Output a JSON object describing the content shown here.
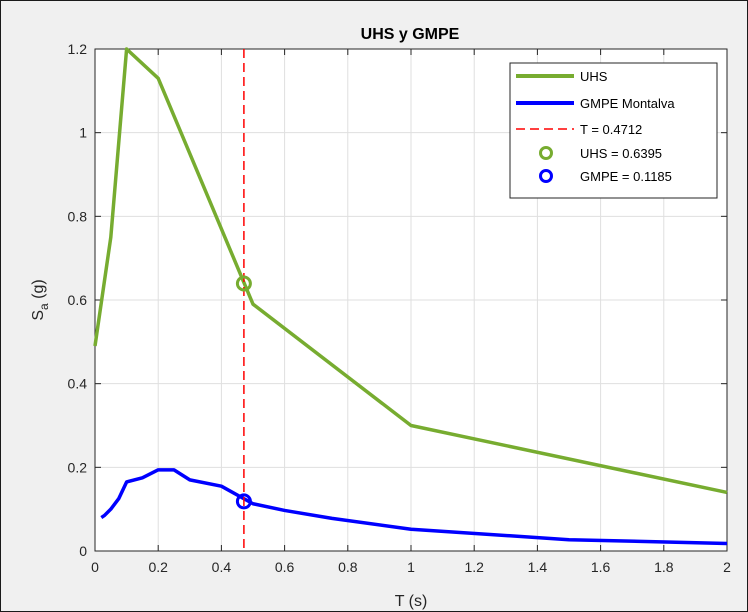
{
  "chart_data": {
    "type": "line",
    "title": "UHS y GMPE",
    "xlabel": "T (s)",
    "ylabel": {
      "main": "S",
      "sub": "a",
      "unit": " (g)"
    },
    "xlim": [
      0,
      2
    ],
    "ylim": [
      0,
      1.2
    ],
    "xticks": [
      0,
      0.2,
      0.4,
      0.6,
      0.8,
      1,
      1.2,
      1.4,
      1.6,
      1.8,
      2
    ],
    "xtick_labels": [
      "0",
      "0.2",
      "0.4",
      "0.6",
      "0.8",
      "1",
      "1.2",
      "1.4",
      "1.6",
      "1.8",
      "2"
    ],
    "yticks": [
      0,
      0.2,
      0.4,
      0.6,
      0.8,
      1,
      1.2
    ],
    "ytick_labels": [
      "0",
      "0.2",
      "0.4",
      "0.6",
      "0.8",
      "1",
      "1.2"
    ],
    "grid": true,
    "legend_position": "top-right",
    "series": [
      {
        "name": "UHS",
        "color": "#77ac30",
        "x": [
          0,
          0.05,
          0.1,
          0.2,
          0.5,
          1,
          2
        ],
        "y": [
          0.49,
          0.75,
          1.2,
          1.13,
          0.59,
          0.3,
          0.14
        ]
      },
      {
        "name": "GMPE Montalva",
        "color": "#0000ff",
        "x": [
          0.02,
          0.03,
          0.05,
          0.075,
          0.1,
          0.15,
          0.2,
          0.25,
          0.3,
          0.4,
          0.5,
          0.6,
          0.75,
          1,
          1.5,
          2
        ],
        "y": [
          0.08,
          0.085,
          0.1,
          0.125,
          0.165,
          0.175,
          0.194,
          0.194,
          0.17,
          0.155,
          0.113,
          0.097,
          0.078,
          0.052,
          0.027,
          0.018
        ]
      }
    ],
    "vline": {
      "name": "T = 0.4712",
      "x": 0.4712,
      "color": "#ff0000"
    },
    "markers": [
      {
        "name": "UHS = 0.6395",
        "x": 0.4712,
        "y": 0.6395,
        "color": "#77ac30"
      },
      {
        "name": "GMPE = 0.1185",
        "x": 0.4712,
        "y": 0.1185,
        "color": "#0000ff"
      }
    ]
  }
}
